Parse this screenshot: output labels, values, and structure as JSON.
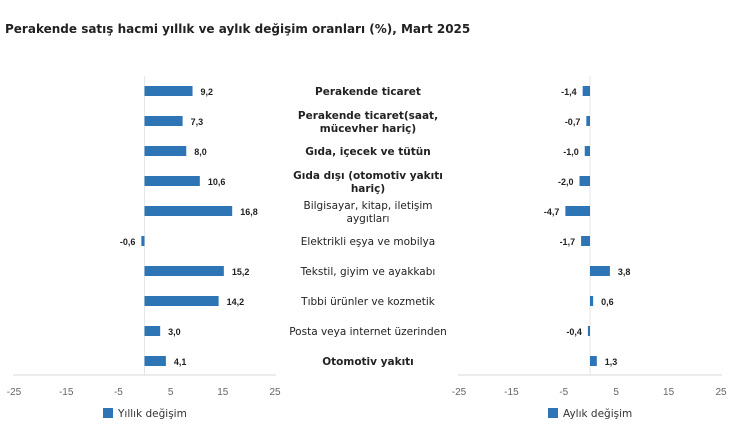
{
  "title": "Perakende satış hacmi yıllık ve aylık değişim oranları (%), Mart 2025",
  "chart_data": [
    {
      "type": "bar",
      "orientation": "horizontal",
      "categories": [
        "Perakende ticaret",
        "Perakende ticaret(saat, mücevher hariç)",
        "Gıda, içecek ve tütün",
        "Gıda dışı (otomotiv yakıtı hariç)",
        "Bilgisayar, kitap, iletişim aygıtları",
        "Elektrikli eşya ve mobilya",
        "Tekstil, giyim ve ayakkabı",
        "Tıbbi ürünler ve kozmetik",
        "Posta veya internet üzerinden",
        "Otomotiv yakıtı"
      ],
      "category_lines": [
        [
          "Perakende ticaret"
        ],
        [
          "Perakende ticaret(saat,",
          "mücevher hariç)"
        ],
        [
          "Gıda, içecek ve tütün"
        ],
        [
          "Gıda dışı (otomotiv yakıtı",
          "hariç)"
        ],
        [
          "Bilgisayar, kitap, iletişim",
          "aygıtları"
        ],
        [
          "Elektrikli eşya ve mobilya"
        ],
        [
          "Tekstil, giyim ve ayakkabı"
        ],
        [
          "Tıbbi ürünler ve kozmetik"
        ],
        [
          "Posta veya internet üzerinden"
        ],
        [
          "Otomotiv yakıtı"
        ]
      ],
      "bold_categories": [
        true,
        true,
        true,
        true,
        false,
        false,
        false,
        false,
        false,
        true
      ],
      "series": [
        {
          "name": "Yıllık değişim",
          "values": [
            9.2,
            7.3,
            8.0,
            10.6,
            16.8,
            -0.6,
            15.2,
            14.2,
            3.0,
            4.1
          ],
          "labels": [
            "9,2",
            "7,3",
            "8,0",
            "10,6",
            "16,8",
            "-0,6",
            "15,2",
            "14,2",
            "3,0",
            "4,1"
          ]
        }
      ],
      "xlim": [
        -25,
        25
      ],
      "xticks": [
        "-25",
        "-15",
        "-5",
        "5",
        "15",
        "25"
      ],
      "legend": "bottom-left",
      "color": "#2e75b6",
      "grid": false
    },
    {
      "type": "bar",
      "orientation": "horizontal",
      "series": [
        {
          "name": "Aylık değişim",
          "values": [
            -1.4,
            -0.7,
            -1.0,
            -2.0,
            -4.7,
            -1.7,
            3.8,
            0.6,
            -0.4,
            1.3
          ],
          "labels": [
            "-1,4",
            "-0,7",
            "-1,0",
            "-2,0",
            "-4,7",
            "-1,7",
            "3,8",
            "0,6",
            "-0,4",
            "1,3"
          ]
        }
      ],
      "xlim": [
        -25,
        25
      ],
      "xticks": [
        "-25",
        "-15",
        "-5",
        "5",
        "15",
        "25"
      ],
      "legend": "bottom-left",
      "color": "#2e75b6",
      "grid": false
    }
  ]
}
